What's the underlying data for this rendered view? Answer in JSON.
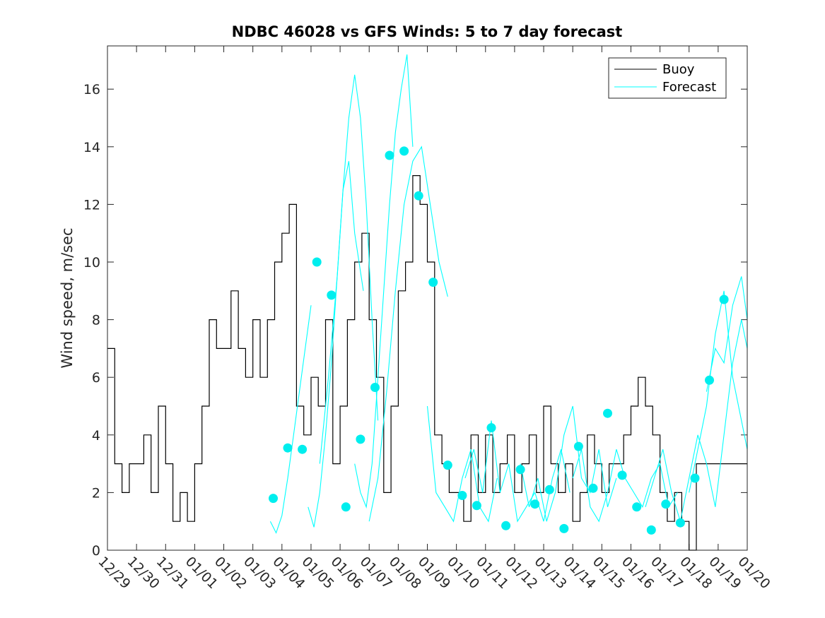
{
  "chart_data": {
    "type": "line",
    "title": "NDBC 46028 vs GFS Winds: 5 to 7 day forecast",
    "xlabel": "",
    "ylabel": "Wind speed, m/sec",
    "ylim": [
      0,
      17.5
    ],
    "yticks": [
      0,
      2,
      4,
      6,
      8,
      10,
      12,
      14,
      16
    ],
    "xlim": [
      0,
      22
    ],
    "xtick_labels": [
      "12/29",
      "12/30",
      "12/31",
      "01/01",
      "01/02",
      "01/03",
      "01/04",
      "01/05",
      "01/06",
      "01/07",
      "01/08",
      "01/09",
      "01/10",
      "01/11",
      "01/12",
      "01/13",
      "01/14",
      "01/15",
      "01/16",
      "01/17",
      "01/18",
      "01/19",
      "01/20"
    ],
    "legend": {
      "location": "top-right",
      "entries": [
        "Buoy",
        "Forecast"
      ]
    },
    "colors": {
      "buoy": "#000000",
      "forecast": "#00ffff",
      "markers": "#00eeee"
    },
    "series": [
      {
        "name": "Buoy",
        "x": [
          0.0,
          0.25,
          0.5,
          0.75,
          1.0,
          1.25,
          1.5,
          1.75,
          2.0,
          2.25,
          2.5,
          2.75,
          3.0,
          3.25,
          3.5,
          3.75,
          4.0,
          4.25,
          4.5,
          4.75,
          5.0,
          5.25,
          5.5,
          5.75,
          6.0,
          6.25,
          6.5,
          6.75,
          7.0,
          7.25,
          7.5,
          7.75,
          8.0,
          8.25,
          8.5,
          8.75,
          9.0,
          9.25,
          9.5,
          9.75,
          10.0,
          10.25,
          10.5,
          10.75,
          11.0,
          11.25,
          11.5,
          11.75,
          12.0,
          12.25,
          12.5,
          12.75,
          13.0,
          13.25,
          13.5,
          13.75,
          14.0,
          14.25,
          14.5,
          14.75,
          15.0,
          15.25,
          15.5,
          15.75,
          16.0,
          16.25,
          16.5,
          16.75,
          17.0,
          17.25,
          17.5,
          17.75,
          18.0,
          18.25,
          18.5,
          18.75,
          19.0,
          19.25,
          19.5,
          19.75,
          20.0,
          20.25,
          20.5,
          20.75,
          21.0,
          21.25,
          21.5,
          21.75,
          22.0
        ],
        "values": [
          7,
          3,
          2,
          3,
          3,
          4,
          2,
          5,
          3,
          1,
          2,
          1,
          3,
          5,
          8,
          7,
          7,
          9,
          7,
          6,
          8,
          6,
          8,
          10,
          11,
          12,
          5,
          4,
          6,
          5,
          8,
          3,
          5,
          8,
          10,
          11,
          8,
          6,
          2,
          5,
          9,
          10,
          13,
          12,
          10,
          4,
          3,
          2,
          2,
          1,
          4,
          2,
          4,
          2,
          3,
          4,
          2,
          3,
          4,
          2,
          5,
          3,
          2,
          3,
          1,
          2,
          4,
          3,
          2,
          3,
          3,
          4,
          5,
          6,
          5,
          4,
          2,
          1,
          2,
          1,
          0,
          3,
          3,
          3,
          3,
          3,
          3,
          3,
          3
        ]
      },
      {
        "name": "Forecast",
        "segments": [
          {
            "x": [
              5.6,
              5.8,
              6.0,
              6.2,
              6.4,
              6.6,
              6.8,
              7.0
            ],
            "values": [
              1.0,
              0.6,
              1.2,
              2.5,
              4.0,
              5.5,
              7.0,
              8.5
            ]
          },
          {
            "x": [
              6.9,
              7.1,
              7.3,
              7.5,
              7.7,
              7.9,
              8.1,
              8.3,
              8.5,
              8.8
            ],
            "values": [
              1.5,
              0.8,
              2.0,
              4.0,
              6.5,
              9.5,
              12.5,
              13.5,
              11.0,
              9.0
            ]
          },
          {
            "x": [
              7.3,
              7.6,
              7.9,
              8.1,
              8.3,
              8.5,
              8.7,
              8.9,
              9.1,
              9.3
            ],
            "values": [
              3.0,
              6.0,
              9.5,
              12.5,
              15.0,
              16.5,
              15.0,
              12.0,
              8.0,
              4.5
            ]
          },
          {
            "x": [
              8.5,
              8.7,
              8.9,
              9.1,
              9.3,
              9.5,
              9.7,
              9.9,
              10.1,
              10.3,
              10.5
            ],
            "values": [
              3.0,
              2.0,
              1.5,
              3.0,
              6.0,
              9.0,
              12.0,
              14.5,
              16.0,
              17.2,
              14.0
            ]
          },
          {
            "x": [
              9.0,
              9.3,
              9.6,
              9.9,
              10.2,
              10.5,
              10.8,
              11.1,
              11.4,
              11.7
            ],
            "values": [
              1.0,
              2.5,
              5.5,
              9.0,
              12.0,
              13.5,
              14.0,
              12.0,
              10.0,
              8.8
            ]
          },
          {
            "x": [
              11.0,
              11.3,
              11.6,
              11.9,
              12.2,
              12.5,
              12.8,
              13.1,
              13.4
            ],
            "values": [
              5.0,
              2.0,
              1.5,
              1.0,
              2.5,
              3.5,
              1.5,
              1.0,
              2.5
            ]
          },
          {
            "x": [
              12.3,
              12.6,
              12.9,
              13.2,
              13.5,
              13.8,
              14.1,
              14.4,
              14.7,
              15.0,
              15.3,
              15.6,
              15.9
            ],
            "values": [
              2.5,
              3.5,
              2.0,
              4.5,
              2.0,
              3.0,
              1.0,
              1.5,
              2.0,
              1.0,
              2.5,
              3.5,
              2.0
            ]
          },
          {
            "x": [
              14.2,
              14.5,
              14.8,
              15.1,
              15.4,
              15.7,
              16.0,
              16.3,
              16.6,
              16.9,
              17.2,
              17.5
            ],
            "values": [
              3.0,
              1.5,
              2.5,
              1.0,
              2.0,
              4.0,
              5.0,
              2.5,
              2.0,
              3.5,
              1.5,
              2.5
            ]
          },
          {
            "x": [
              16.0,
              16.3,
              16.6,
              16.9,
              17.2,
              17.5,
              17.8,
              18.1,
              18.4,
              18.7,
              19.0,
              19.3,
              19.6
            ],
            "values": [
              2.5,
              3.5,
              1.5,
              1.0,
              2.0,
              3.5,
              2.5,
              2.0,
              1.5,
              2.5,
              3.0,
              1.5,
              2.0
            ]
          },
          {
            "x": [
              18.5,
              18.8,
              19.1,
              19.4,
              19.7,
              20.0,
              20.3,
              20.6,
              20.9,
              21.2,
              21.5,
              21.8,
              22.0
            ],
            "values": [
              1.5,
              2.5,
              3.5,
              2.0,
              1.0,
              2.5,
              4.0,
              3.0,
              1.5,
              4.0,
              6.5,
              8.0,
              7.0
            ]
          },
          {
            "x": [
              20.0,
              20.3,
              20.6,
              20.9,
              21.2,
              21.5,
              21.8,
              22.0
            ],
            "values": [
              2.0,
              3.5,
              5.0,
              7.5,
              9.0,
              6.0,
              4.5,
              3.5
            ]
          },
          {
            "x": [
              20.6,
              20.9,
              21.2,
              21.5,
              21.8,
              22.0
            ],
            "values": [
              5.5,
              7.0,
              6.5,
              8.5,
              9.5,
              8.0
            ]
          }
        ]
      }
    ],
    "markers": {
      "x": [
        5.7,
        6.2,
        6.7,
        7.2,
        7.7,
        8.2,
        8.7,
        9.2,
        9.7,
        10.2,
        10.7,
        11.2,
        11.7,
        12.2,
        12.7,
        13.2,
        13.7,
        14.2,
        14.7,
        15.2,
        15.7,
        16.2,
        16.7,
        17.2,
        17.7,
        18.2,
        18.7,
        19.2,
        19.7,
        20.2,
        20.7,
        21.2
      ],
      "values": [
        1.8,
        3.55,
        3.5,
        10.0,
        8.85,
        1.5,
        3.85,
        5.65,
        13.7,
        13.85,
        12.3,
        9.3,
        2.95,
        1.9,
        1.55,
        4.25,
        0.85,
        2.8,
        1.6,
        2.1,
        0.75,
        3.6,
        2.15,
        4.75,
        2.6,
        1.5,
        0.7,
        1.6,
        0.95,
        2.5,
        5.9,
        8.7
      ]
    }
  }
}
